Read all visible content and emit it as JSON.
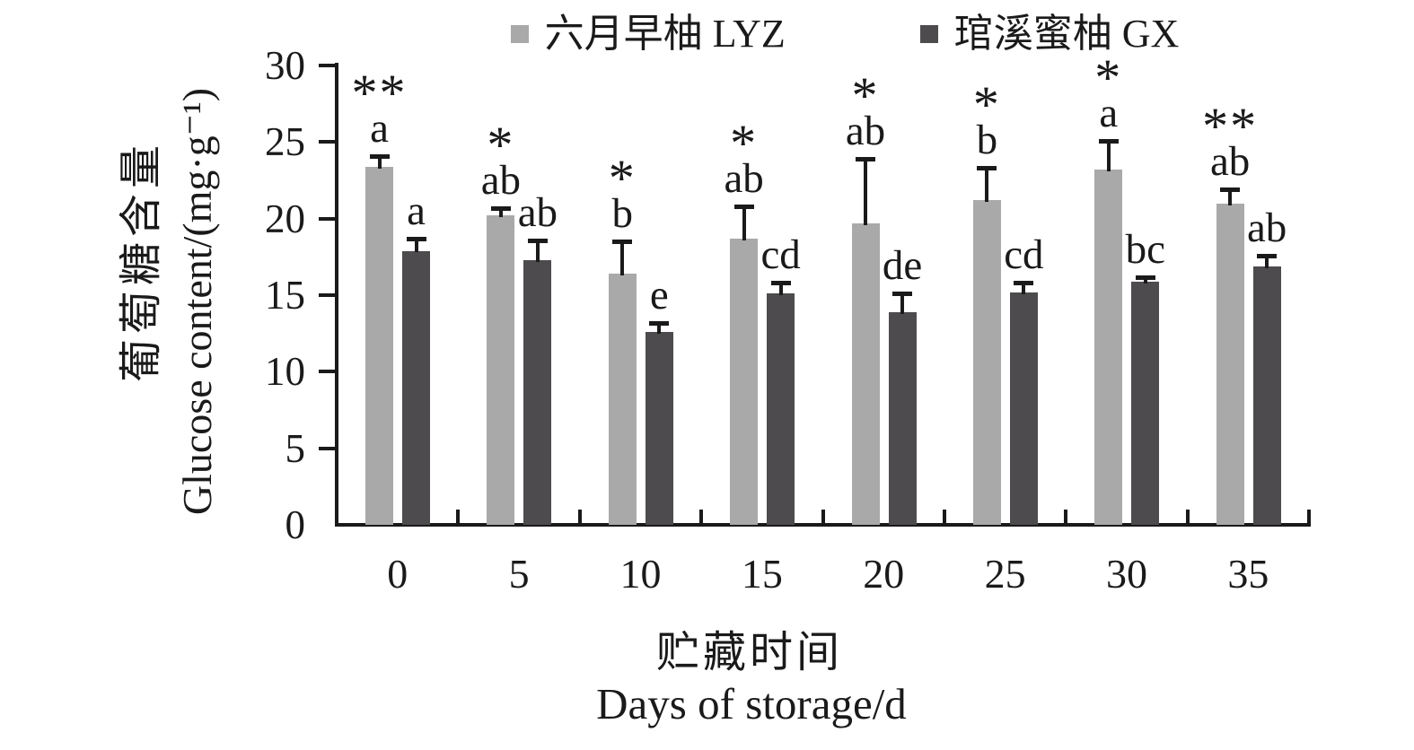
{
  "chart_data": {
    "type": "bar",
    "title": "",
    "categories": [
      "0",
      "5",
      "10",
      "15",
      "20",
      "25",
      "30",
      "35"
    ],
    "series": [
      {
        "name": "六月早柚 LYZ",
        "color": "#A9A9A9",
        "values": [
          23.4,
          20.2,
          16.4,
          18.7,
          19.7,
          21.2,
          23.2,
          21.0
        ],
        "errors": [
          0.7,
          0.5,
          2.1,
          2.1,
          4.2,
          2.1,
          1.9,
          0.9
        ],
        "significance": [
          "**",
          "*",
          "*",
          "*",
          "*",
          "*",
          "*",
          "**"
        ],
        "letters": [
          "a",
          "ab",
          "b",
          "ab",
          "ab",
          "b",
          "a",
          "ab"
        ]
      },
      {
        "name": "琯溪蜜柚 GX",
        "color": "#4D4B4D",
        "values": [
          17.9,
          17.3,
          12.6,
          15.1,
          13.9,
          15.2,
          15.9,
          16.9
        ],
        "errors": [
          0.8,
          1.3,
          0.6,
          0.7,
          1.2,
          0.6,
          0.3,
          0.7
        ],
        "significance": [
          "",
          "",
          "",
          "",
          "",
          "",
          "",
          ""
        ],
        "letters": [
          "a",
          "ab",
          "e",
          "cd",
          "de",
          "cd",
          "bc",
          "ab"
        ]
      }
    ],
    "xlabel_zh": "贮藏时间",
    "xlabel_en": "Days of storage/d",
    "ylabel_zh": "葡萄糖含量",
    "ylabel_en": "Glucose content/(mg·g⁻¹)",
    "ylim": [
      0,
      30
    ],
    "yticks": [
      0,
      5,
      10,
      15,
      20,
      25,
      30
    ],
    "legend_position": "top",
    "grid": false,
    "axis_color": "#1a1a1a",
    "text_color": "#1a1a1a"
  }
}
